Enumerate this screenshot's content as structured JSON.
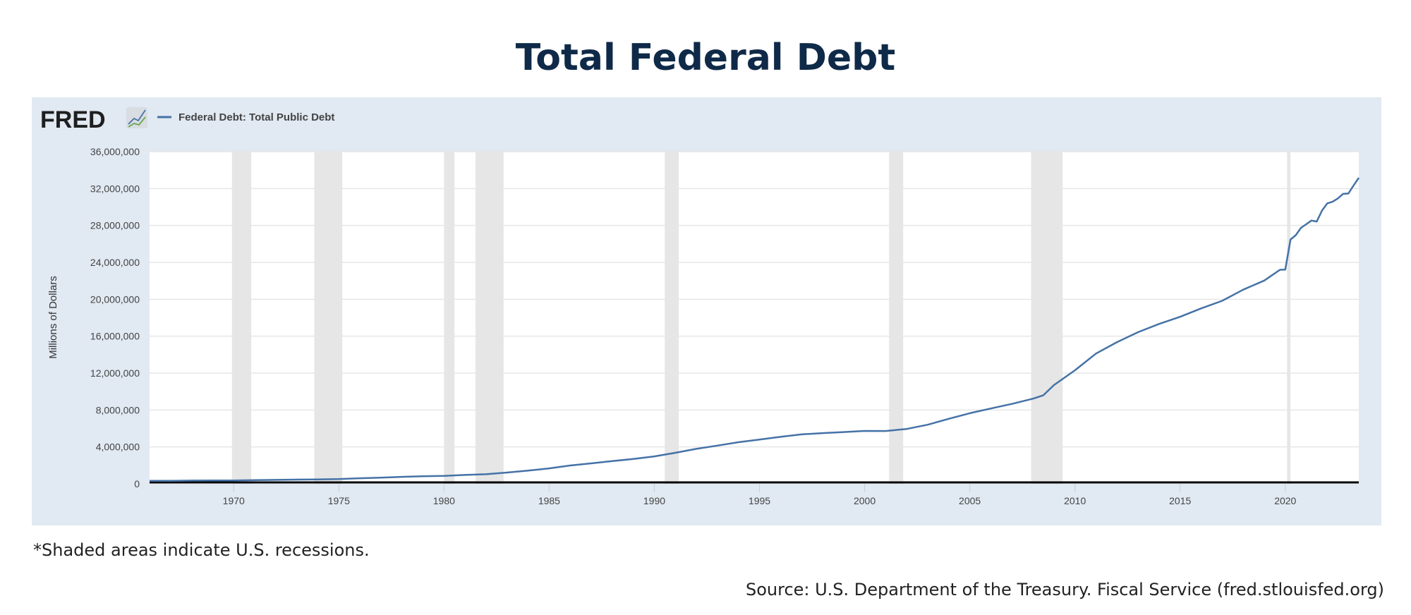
{
  "title": "Total Federal Debt",
  "footnote": "*Shaded areas indicate U.S. recessions.",
  "source": "Source: U.S. Department of the Treasury. Fiscal Service (fred.stlouisfed.org)",
  "logo_text": "FRED",
  "colors": {
    "line": "#4572a7",
    "panel": "#e1e9f2",
    "recession": "#e6e6e6",
    "title": "#0f2a48"
  },
  "chart_data": {
    "type": "line",
    "ylabel": "Millions of Dollars",
    "xlabel": "",
    "xlim": [
      "1966-01-01",
      "2023-07-01"
    ],
    "ylim": [
      0,
      36000000
    ],
    "grid": true,
    "legend": "top-left",
    "y_ticks": [
      "0",
      "4,000,000",
      "8,000,000",
      "12,000,000",
      "16,000,000",
      "20,000,000",
      "24,000,000",
      "28,000,000",
      "32,000,000",
      "36,000,000"
    ],
    "x_ticks": [
      "1970",
      "1975",
      "1980",
      "1985",
      "1990",
      "1995",
      "2000",
      "2005",
      "2010",
      "2015",
      "2020"
    ],
    "recessions": [
      [
        "1969-12-01",
        "1970-11-01"
      ],
      [
        "1973-11-01",
        "1975-03-01"
      ],
      [
        "1980-01-01",
        "1980-07-01"
      ],
      [
        "1981-07-01",
        "1982-11-01"
      ],
      [
        "1990-07-01",
        "1991-03-01"
      ],
      [
        "2001-03-01",
        "2001-11-01"
      ],
      [
        "2007-12-01",
        "2009-06-01"
      ],
      [
        "2020-02-01",
        "2020-04-01"
      ]
    ],
    "series": [
      {
        "name": "Federal Debt: Total Public Debt",
        "x": [
          "1966-01-01",
          "1967-01-01",
          "1968-01-01",
          "1969-01-01",
          "1970-01-01",
          "1971-01-01",
          "1972-01-01",
          "1973-01-01",
          "1974-01-01",
          "1975-01-01",
          "1976-01-01",
          "1977-01-01",
          "1978-01-01",
          "1979-01-01",
          "1980-01-01",
          "1981-01-01",
          "1982-01-01",
          "1983-01-01",
          "1984-01-01",
          "1985-01-01",
          "1986-01-01",
          "1987-01-01",
          "1988-01-01",
          "1989-01-01",
          "1990-01-01",
          "1991-01-01",
          "1992-01-01",
          "1993-01-01",
          "1994-01-01",
          "1995-01-01",
          "1996-01-01",
          "1997-01-01",
          "1998-01-01",
          "1999-01-01",
          "2000-01-01",
          "2001-01-01",
          "2002-01-01",
          "2003-01-01",
          "2004-01-01",
          "2005-01-01",
          "2006-01-01",
          "2007-01-01",
          "2008-01-01",
          "2008-07-01",
          "2009-01-01",
          "2010-01-01",
          "2011-01-01",
          "2012-01-01",
          "2013-01-01",
          "2014-01-01",
          "2015-01-01",
          "2016-01-01",
          "2017-01-01",
          "2018-01-01",
          "2019-01-01",
          "2019-10-01",
          "2020-01-01",
          "2020-04-01",
          "2020-07-01",
          "2020-10-01",
          "2021-01-01",
          "2021-04-01",
          "2021-07-01",
          "2021-10-01",
          "2022-01-01",
          "2022-04-01",
          "2022-07-01",
          "2022-10-01",
          "2023-01-01",
          "2023-04-01",
          "2023-07-01"
        ],
        "values": [
          321000,
          330000,
          350000,
          360000,
          370000,
          398000,
          427000,
          458000,
          474000,
          512000,
          600000,
          676000,
          758000,
          820000,
          857000,
          962000,
          1042000,
          1222000,
          1430000,
          1676000,
          1985000,
          2215000,
          2461000,
          2693000,
          2975000,
          3362000,
          3792000,
          4143000,
          4513000,
          4803000,
          5094000,
          5358000,
          5494000,
          5607000,
          5735000,
          5728000,
          5943000,
          6405000,
          7048000,
          7649000,
          8166000,
          8663000,
          9229000,
          9600000,
          10699000,
          12308000,
          14115000,
          15356000,
          16432000,
          17326000,
          18102000,
          19011000,
          19838000,
          21042000,
          22027000,
          23201000,
          23224000,
          26477000,
          26945000,
          27748000,
          28133000,
          28529000,
          28428000,
          29617000,
          30401000,
          30568000,
          30928000,
          31419000,
          31458000,
          32333000,
          33167000
        ]
      }
    ]
  }
}
